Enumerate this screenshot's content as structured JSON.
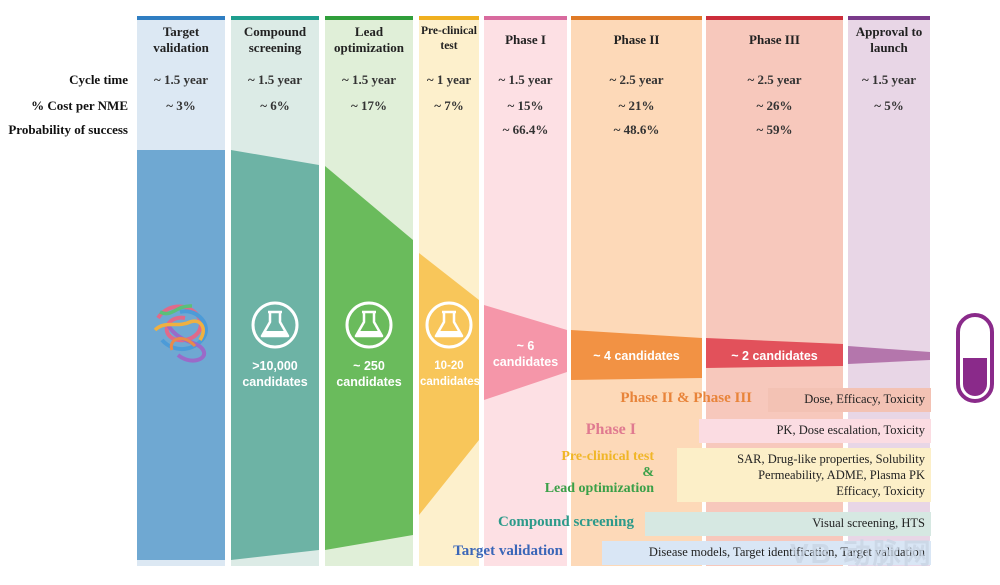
{
  "columns": [
    {
      "title": "Target validation",
      "cycle_time": "~ 1.5 year",
      "cost": "~ 3%",
      "probability": "",
      "candidates": ""
    },
    {
      "title": "Compound screening",
      "cycle_time": "~ 1.5 year",
      "cost": "~ 6%",
      "probability": "",
      "candidates": ">10,000 candidates"
    },
    {
      "title": "Lead optimization",
      "cycle_time": "~ 1.5 year",
      "cost": "~ 17%",
      "probability": "",
      "candidates": "~ 250 candidates"
    },
    {
      "title": "Pre-clinical test",
      "cycle_time": "~ 1 year",
      "cost": "~ 7%",
      "probability": "",
      "candidates": "10-20 candidates"
    },
    {
      "title": "Phase I",
      "cycle_time": "~ 1.5 year",
      "cost": "~ 15%",
      "probability": "~ 66.4%",
      "candidates": "~ 6 candidates"
    },
    {
      "title": "Phase II",
      "cycle_time": "~ 2.5 year",
      "cost": "~ 21%",
      "probability": "~ 48.6%",
      "candidates": "~ 4 candidates"
    },
    {
      "title": "Phase III",
      "cycle_time": "~ 2.5 year",
      "cost": "~ 26%",
      "probability": "~ 59%",
      "candidates": "~ 2 candidates"
    },
    {
      "title": "Approval to launch",
      "cycle_time": "~ 1.5 year",
      "cost": "~ 5%",
      "probability": "",
      "candidates": ""
    }
  ],
  "row_labels": {
    "cycle_time": "Cycle time",
    "cost": "% Cost per NME",
    "probability": "Probability of success"
  },
  "stages": [
    {
      "label": "Phase II & Phase III",
      "details": "Dose, Efficacy, Toxicity",
      "color": "#e8843a"
    },
    {
      "label": "Phase I",
      "details": "PK, Dose escalation, Toxicity",
      "color": "#e07a90"
    },
    {
      "label": "Pre-clinical test",
      "label2": "&",
      "label3": "Lead optimization",
      "details": "SAR, Drug-like properties, Solubility",
      "details2": "Permeability, ADME, Plasma PK",
      "details3": "Efficacy, Toxicity",
      "color": "#f0b628",
      "color2": "#3aa048"
    },
    {
      "label": "Compound screening",
      "details": "Visual screening, HTS",
      "color": "#2c9a8a"
    },
    {
      "label": "Target validation",
      "details": "Disease models, Target identification, Target validation",
      "color": "#3a66b8"
    }
  ],
  "colors": {
    "target": "#5b9ccc",
    "screening": "#5aaa9a",
    "lead": "#62b552",
    "preclinical": "#f7c24a",
    "phase1": "#f490a4",
    "phase2": "#f39040",
    "phase3": "#e65058",
    "approval": "#b070a8",
    "pill": "#8a2a8a"
  },
  "watermark": "VB 动脉网"
}
